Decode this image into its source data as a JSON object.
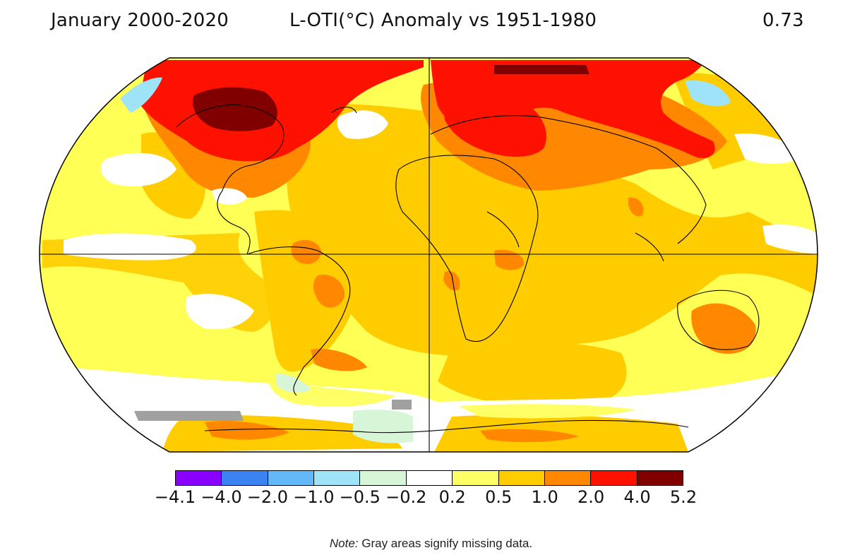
{
  "header": {
    "period": "January 2000-2020",
    "metric": "L-OTI(°C) Anomaly vs 1951-1980",
    "global_mean": "0.73"
  },
  "legend": {
    "bins": [
      {
        "color": "#8a00ff"
      },
      {
        "color": "#3b82f2"
      },
      {
        "color": "#63b9f7"
      },
      {
        "color": "#9fe3f8"
      },
      {
        "color": "#d7f5d7"
      },
      {
        "color": "#ffffff"
      },
      {
        "color": "#ffff66"
      },
      {
        "color": "#ffcc00"
      },
      {
        "color": "#ff8800"
      },
      {
        "color": "#ff1100"
      },
      {
        "color": "#800000"
      }
    ],
    "ticks": [
      "−4.1",
      "−4.0",
      "−2.0",
      "−1.0",
      "−0.5",
      "−0.2",
      "0.2",
      "0.5",
      "1.0",
      "2.0",
      "4.0",
      "5.2"
    ]
  },
  "note": {
    "label": "Note:",
    "text": "Gray areas signify missing data."
  },
  "map": {
    "projection": "Robinson (global)",
    "missing_data_color": "#a0a0a0"
  }
}
